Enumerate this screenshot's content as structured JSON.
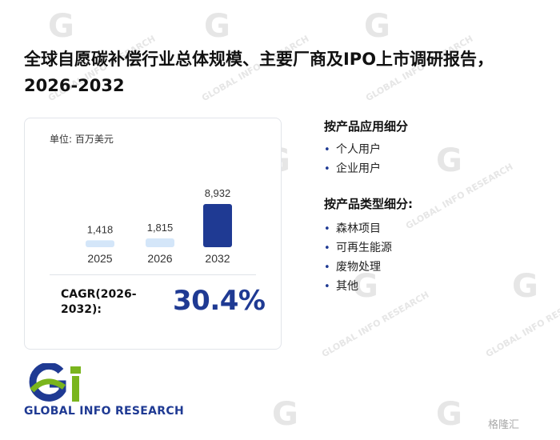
{
  "title": "全球自愿碳补偿行业总体规模、主要厂商及IPO上市调研报告，2026-2032",
  "unit_label": "单位: 百万美元",
  "chart_data": {
    "type": "bar",
    "title": "",
    "xlabel": "",
    "ylabel": "",
    "categories": [
      "2025",
      "2026",
      "2032"
    ],
    "values": [
      1418,
      1815,
      8932
    ],
    "value_labels": [
      "1,418",
      "1,815",
      "8,932"
    ],
    "ylim": [
      0,
      8932
    ],
    "grid": false,
    "colors": [
      "#d4e6f9",
      "#d4e6f9",
      "#1f3a93"
    ]
  },
  "cagr": {
    "label": "CAGR(2026-2032):",
    "value": "30.4%"
  },
  "segments": [
    {
      "title": "按产品应用细分",
      "items": [
        "个人用户",
        "企业用户"
      ]
    },
    {
      "title": "按产品类型细分:",
      "items": [
        "森林项目",
        "可再生能源",
        "废物处理",
        "其他"
      ]
    }
  ],
  "bullet": "•",
  "watermark_text": "GLOBAL INFO RESEARCH",
  "logo": {
    "mark": "Gi",
    "text": "GLOBAL INFO RESEARCH",
    "colors": {
      "blue": "#1f3a93",
      "green": "#7ab51d"
    }
  },
  "corner_mark": "格隆汇"
}
